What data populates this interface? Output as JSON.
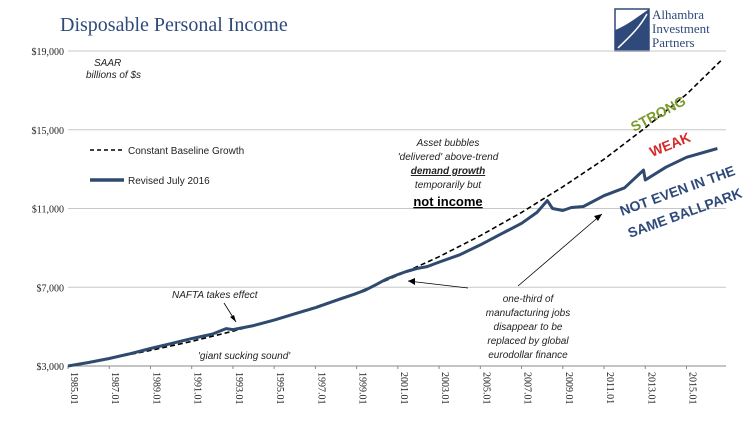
{
  "title": "Disposable Personal Income",
  "logo": {
    "lines": [
      "Alhambra",
      "Investment",
      "Partners"
    ],
    "colors": {
      "blue": "#2f4a7a"
    }
  },
  "chart_data": {
    "type": "line",
    "title": "Disposable Personal Income",
    "units_note": [
      "SAAR",
      "billions of $s"
    ],
    "ylim": [
      3000,
      19000
    ],
    "y_ticks": [
      3000,
      7000,
      11000,
      15000,
      19000
    ],
    "y_tick_labels": [
      "$3,000",
      "$7,000",
      "$11,000",
      "$15,000",
      "$19,000"
    ],
    "x_range": [
      "1985-01",
      "2016-12"
    ],
    "x_ticks": [
      "1985-01",
      "1987-01",
      "1989-01",
      "1991-01",
      "1993-01",
      "1995-01",
      "1997-01",
      "1999-01",
      "2001-01",
      "2003-01",
      "2005-01",
      "2007-01",
      "2009-01",
      "2011-01",
      "2013-01",
      "2015-01"
    ],
    "x_tick_labels": [
      "1985.01",
      "1987.01",
      "1989.01",
      "1991.01",
      "1993.01",
      "1995.01",
      "1997.01",
      "1999.01",
      "2001.01",
      "2003.01",
      "2005.01",
      "2007.01",
      "2009.01",
      "2011.01",
      "2013.01",
      "2015.01"
    ],
    "grid": "horizontal",
    "legend_position": "left",
    "series": [
      {
        "name": "Constant Baseline Growth",
        "style": "dashed",
        "color": "#000000",
        "points": [
          [
            "1985-01",
            3000
          ],
          [
            "1987-01",
            3380
          ],
          [
            "1989-01",
            3790
          ],
          [
            "1991-01",
            4250
          ],
          [
            "1993-01",
            4770
          ],
          [
            "1995-01",
            5350
          ],
          [
            "1997-01",
            6000
          ],
          [
            "1999-01",
            6720
          ],
          [
            "2001-01",
            7600
          ],
          [
            "2003-01",
            8550
          ],
          [
            "2005-01",
            9620
          ],
          [
            "2007-01",
            10800
          ],
          [
            "2009-01",
            12100
          ],
          [
            "2011-01",
            13500
          ],
          [
            "2013-01",
            15100
          ],
          [
            "2015-01",
            16800
          ],
          [
            "2016-09",
            18500
          ]
        ]
      },
      {
        "name": "Revised July 2016",
        "style": "solid",
        "color": "#2f4a6e",
        "points": [
          [
            "1985-01",
            3000
          ],
          [
            "1986-01",
            3180
          ],
          [
            "1987-01",
            3380
          ],
          [
            "1988-01",
            3620
          ],
          [
            "1989-01",
            3890
          ],
          [
            "1990-01",
            4140
          ],
          [
            "1991-01",
            4390
          ],
          [
            "1992-01",
            4620
          ],
          [
            "1992-09",
            4900
          ],
          [
            "1993-01",
            4850
          ],
          [
            "1994-01",
            5050
          ],
          [
            "1995-01",
            5330
          ],
          [
            "1996-01",
            5650
          ],
          [
            "1997-01",
            5960
          ],
          [
            "1998-01",
            6330
          ],
          [
            "1999-01",
            6690
          ],
          [
            "1999-06",
            6850
          ],
          [
            "1999-12",
            7120
          ],
          [
            "2000-06",
            7400
          ],
          [
            "2001-01",
            7650
          ],
          [
            "2001-06",
            7800
          ],
          [
            "2001-12",
            7950
          ],
          [
            "2002-06",
            8050
          ],
          [
            "2003-01",
            8280
          ],
          [
            "2004-01",
            8650
          ],
          [
            "2005-01",
            9150
          ],
          [
            "2006-01",
            9700
          ],
          [
            "2007-01",
            10250
          ],
          [
            "2007-10",
            10800
          ],
          [
            "2008-04",
            11400
          ],
          [
            "2008-07",
            11000
          ],
          [
            "2009-01",
            10900
          ],
          [
            "2009-06",
            11050
          ],
          [
            "2010-01",
            11100
          ],
          [
            "2011-01",
            11650
          ],
          [
            "2012-01",
            12050
          ],
          [
            "2012-12",
            12950
          ],
          [
            "2013-01",
            12450
          ],
          [
            "2014-01",
            13100
          ],
          [
            "2015-01",
            13600
          ],
          [
            "2016-07",
            14050
          ]
        ]
      }
    ],
    "legend": [
      {
        "label": "Constant Baseline Growth",
        "style": "dashed"
      },
      {
        "label": "Revised July 2016",
        "style": "solid"
      }
    ],
    "annotations": {
      "asset_bubbles": [
        "Asset bubbles",
        "'delivered' above-trend",
        "demand growth",
        "temporarily but",
        "not income"
      ],
      "nafta": "NAFTA takes effect",
      "giant_sucking": "'giant sucking sound'",
      "manufacturing": [
        "one-third of",
        "manufacturing jobs",
        "disappear to be",
        "replaced by global",
        "eurodollar finance"
      ],
      "strong": "STRONG",
      "weak": "WEAK",
      "ballpark": [
        "NOT EVEN IN THE",
        "SAME BALLPARK"
      ]
    },
    "annotation_colors": {
      "strong": "#7a9a2c",
      "weak": "#d42a2a",
      "ballpark": "#2f4a7a"
    }
  }
}
